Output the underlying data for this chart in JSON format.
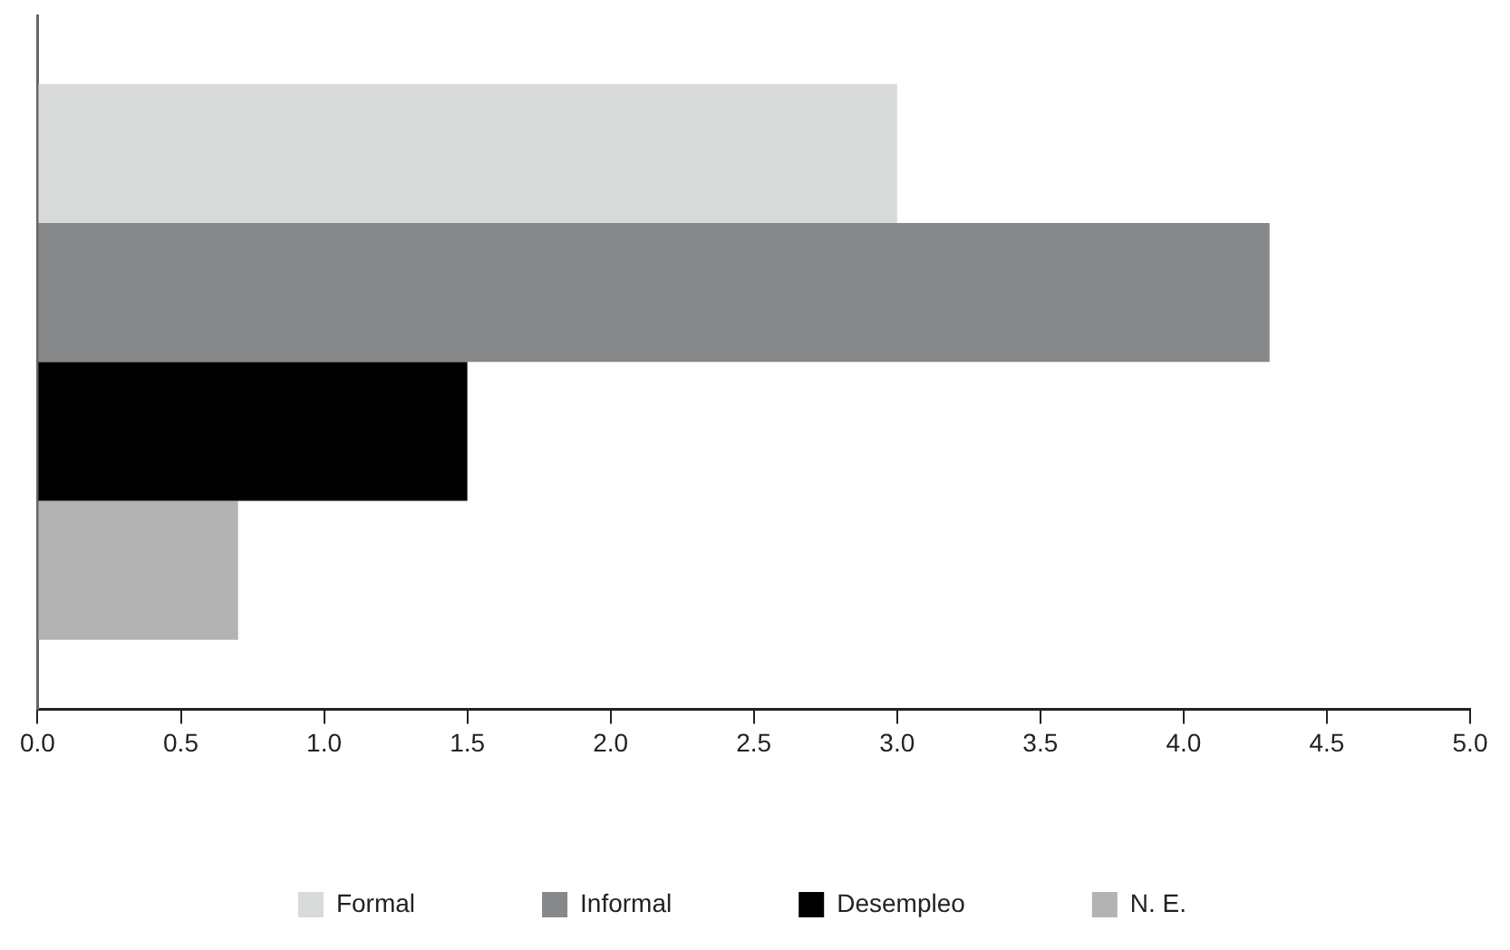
{
  "chart_data": {
    "type": "bar",
    "orientation": "horizontal",
    "categories": [
      null
    ],
    "series": [
      {
        "name": "Formal",
        "color": "#d9dada",
        "values": [
          3.0
        ]
      },
      {
        "name": "Informal",
        "color": "#87888a",
        "values": [
          4.3
        ]
      },
      {
        "name": "Desempleo",
        "color": "#000000",
        "values": [
          1.5
        ]
      },
      {
        "name": "N. E.",
        "color": "#b3b3b3",
        "values": [
          0.7
        ]
      }
    ],
    "xlim": [
      0,
      5
    ],
    "xticks": [
      {
        "value": 0,
        "label": "0.0"
      },
      {
        "value": 0.5,
        "label": "0.5"
      },
      {
        "value": 1,
        "label": "1.0"
      },
      {
        "value": 1.5,
        "label": "1.5"
      },
      {
        "value": 2,
        "label": "2.0"
      },
      {
        "value": 2.5,
        "label": "2.5"
      },
      {
        "value": 3,
        "label": "3.0"
      },
      {
        "value": 3.5,
        "label": "3.5"
      },
      {
        "value": 4,
        "label": "4.0"
      },
      {
        "value": 4.5,
        "label": "4.5"
      },
      {
        "value": 5,
        "label": "5.0"
      }
    ],
    "tick_labels": "x",
    "grid": false,
    "legend": "bottom"
  }
}
